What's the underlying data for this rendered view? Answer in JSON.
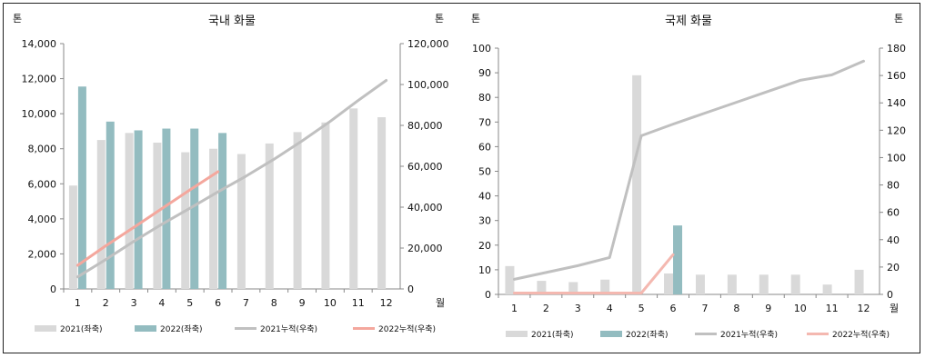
{
  "chart_data": [
    {
      "type": "bar",
      "title": "국내 화물",
      "ylabel_left": "톤",
      "ylabel_right": "톤",
      "xlabel": "월",
      "categories": [
        "1",
        "2",
        "3",
        "4",
        "5",
        "6",
        "7",
        "8",
        "9",
        "10",
        "11",
        "12"
      ],
      "ylim_left": [
        0,
        14000
      ],
      "ylim_right": [
        0,
        120000
      ],
      "yticks_left": [
        "0",
        "2,000",
        "4,000",
        "6,000",
        "8,000",
        "10,000",
        "12,000",
        "14,000"
      ],
      "yticks_right": [
        "0",
        "20,000",
        "40,000",
        "60,000",
        "80,000",
        "100,000",
        "120,000"
      ],
      "series": [
        {
          "name": "2021(좌축)",
          "kind": "bar",
          "axis": "left",
          "color": "#d9d9d9",
          "values": [
            5900,
            8500,
            8900,
            8350,
            7800,
            8000,
            7700,
            8300,
            8950,
            9500,
            10300,
            9800
          ]
        },
        {
          "name": "2022(좌축)",
          "kind": "bar",
          "axis": "left",
          "color": "#93bcc0",
          "values": [
            11550,
            9550,
            9050,
            9150,
            9150,
            8900,
            null,
            null,
            null,
            null,
            null,
            null
          ]
        },
        {
          "name": "2021누적(우축)",
          "kind": "line",
          "axis": "right",
          "color": "#c0c0c0",
          "values": [
            5900,
            14400,
            23300,
            31650,
            39450,
            47450,
            55150,
            63450,
            72400,
            81900,
            92200,
            102000
          ]
        },
        {
          "name": "2022누적(우축)",
          "kind": "line",
          "axis": "right",
          "color": "#f4a79d",
          "values": [
            11550,
            21100,
            30150,
            39300,
            48450,
            57350,
            null,
            null,
            null,
            null,
            null,
            null
          ]
        }
      ],
      "legend": "bottom"
    },
    {
      "type": "bar",
      "title": "국제 화물",
      "ylabel_left": "톤",
      "ylabel_right": "톤",
      "xlabel": "월",
      "categories": [
        "1",
        "2",
        "3",
        "4",
        "5",
        "6",
        "7",
        "8",
        "9",
        "10",
        "11",
        "12"
      ],
      "ylim_left": [
        0,
        100
      ],
      "ylim_right": [
        0,
        180
      ],
      "yticks_left": [
        "0",
        "10",
        "20",
        "30",
        "40",
        "50",
        "60",
        "70",
        "80",
        "90",
        "100"
      ],
      "yticks_right": [
        "0",
        "20",
        "40",
        "60",
        "80",
        "100",
        "120",
        "140",
        "160",
        "180"
      ],
      "series": [
        {
          "name": "2021(좌축)",
          "kind": "bar",
          "axis": "left",
          "color": "#d9d9d9",
          "values": [
            11.5,
            5.5,
            5,
            6,
            89,
            8.5,
            8,
            8,
            8,
            8,
            4,
            10
          ]
        },
        {
          "name": "2022(좌축)",
          "kind": "bar",
          "axis": "left",
          "color": "#93bcc0",
          "values": [
            1,
            0,
            0,
            0,
            0,
            28,
            null,
            null,
            null,
            null,
            null,
            null
          ]
        },
        {
          "name": "2021누적(우축)",
          "kind": "line",
          "axis": "right",
          "color": "#c0c0c0",
          "values": [
            11,
            16,
            21,
            27,
            116,
            124.5,
            132.5,
            140.5,
            148.5,
            156.5,
            160.5,
            170.5
          ]
        },
        {
          "name": "2022누적(우축)",
          "kind": "line",
          "axis": "right",
          "color": "#f4b8b0",
          "values": [
            1,
            1,
            1,
            1,
            1,
            29,
            null,
            null,
            null,
            null,
            null,
            null
          ]
        }
      ],
      "legend": "bottom"
    }
  ]
}
